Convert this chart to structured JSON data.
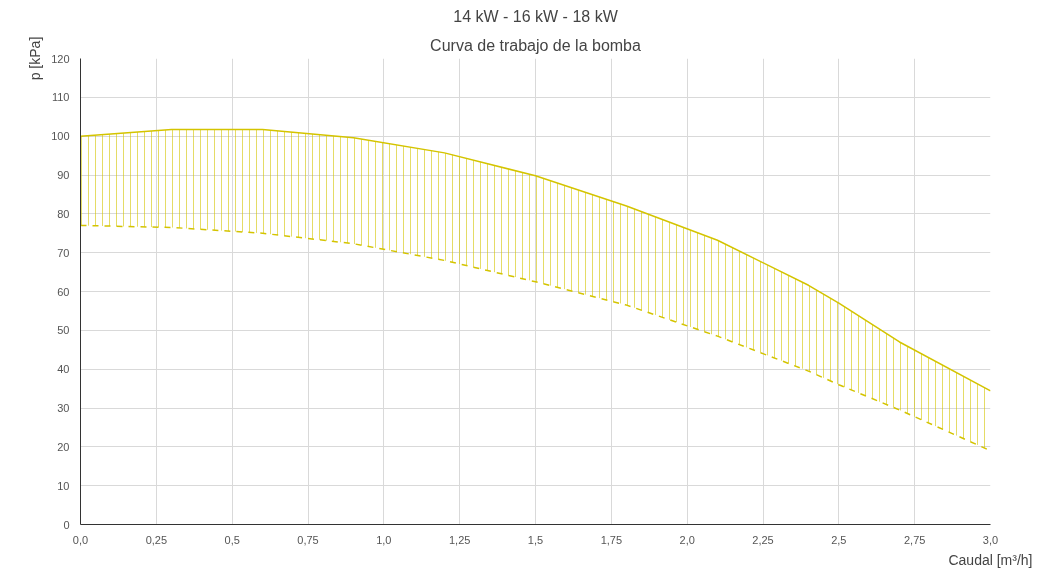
{
  "chart_data": {
    "type": "line",
    "title": "14 kW - 16 kW - 18 kW",
    "subtitle": "Curva de trabajo de la bomba",
    "xlabel": "Caudal [m³/h]",
    "ylabel": "p [kPa]",
    "x": [
      0,
      0.3,
      0.6,
      0.9,
      1.2,
      1.5,
      1.8,
      2.1,
      2.4,
      2.5,
      2.7,
      3.0
    ],
    "series": [
      {
        "color": "#d4c400",
        "line_style": "solid",
        "values": [
          100,
          101.7,
          101.7,
          99.6,
          95.7,
          89.8,
          82,
          73.2,
          61.6,
          57,
          47,
          34.4
        ],
        "lower": [
          77,
          76.5,
          75,
          72.3,
          68,
          62.5,
          56.5,
          48.5,
          39.5,
          36,
          29.5,
          19
        ],
        "upper": [
          100,
          101.7,
          101.7,
          99.6,
          95.7,
          89.8,
          82,
          73.2,
          61.6,
          57,
          47,
          34.4
        ]
      },
      {
        "color": "#d4c400",
        "line_style": "dashed",
        "values": [
          77,
          76.5,
          75,
          72.3,
          68,
          62.5,
          56.5,
          48.5,
          39.5,
          36,
          29.5,
          19
        ]
      }
    ],
    "xlim": [
      0,
      3.0
    ],
    "ylim": [
      0,
      120
    ],
    "xticks": [
      {
        "value": 0,
        "label": "0,0"
      },
      {
        "value": 0.25,
        "label": "0,25"
      },
      {
        "value": 0.5,
        "label": "0,5"
      },
      {
        "value": 0.75,
        "label": "0,75"
      },
      {
        "value": 1.0,
        "label": "1,0"
      },
      {
        "value": 1.25,
        "label": "1,25"
      },
      {
        "value": 1.5,
        "label": "1,5"
      },
      {
        "value": 1.75,
        "label": "1,75"
      },
      {
        "value": 2.0,
        "label": "2,0"
      },
      {
        "value": 2.25,
        "label": "2,25"
      },
      {
        "value": 2.5,
        "label": "2,5"
      },
      {
        "value": 2.75,
        "label": "2,75"
      },
      {
        "value": 3.0,
        "label": "3,0"
      }
    ],
    "yticks": [
      0,
      10,
      20,
      30,
      40,
      50,
      60,
      70,
      80,
      90,
      100,
      110,
      120
    ],
    "grid": true,
    "legend": false,
    "marker": "none"
  }
}
